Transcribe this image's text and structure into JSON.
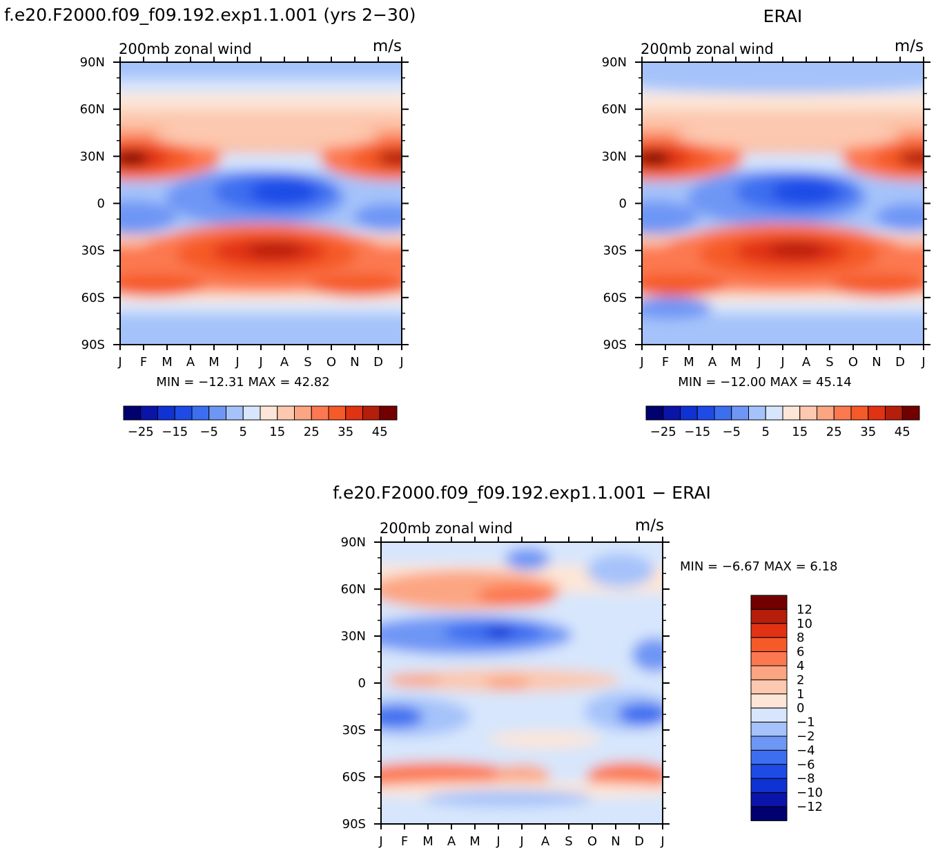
{
  "chart_data": [
    {
      "type": "heatmap",
      "title": "f.e20.F2000.f09_f09.192.exp1.1.001 (yrs 2−30)",
      "subtitle": "200mb  zonal  wind",
      "units": "m/s",
      "x_tick_labels": [
        "J",
        "F",
        "M",
        "A",
        "M",
        "J",
        "J",
        "A",
        "S",
        "O",
        "N",
        "D",
        "J"
      ],
      "y_tick_labels": [
        "90N",
        "60N",
        "30N",
        "0",
        "30S",
        "60S",
        "90S"
      ],
      "stats": "MIN =  −12.31  MAX =    42.82",
      "colorbar_labels": [
        "−25",
        "−15",
        "−5",
        "5",
        "15",
        "25",
        "35",
        "45"
      ],
      "colorbar_levels": [
        -30,
        -25,
        -20,
        -15,
        -10,
        -5,
        0,
        5,
        10,
        15,
        20,
        25,
        30,
        35,
        40,
        45,
        50
      ],
      "xlim": [
        1,
        13
      ],
      "ylim": [
        -90,
        90
      ]
    },
    {
      "type": "heatmap",
      "title": "ERAI",
      "subtitle": "200mb  zonal  wind",
      "units": "m/s",
      "x_tick_labels": [
        "J",
        "F",
        "M",
        "A",
        "M",
        "J",
        "J",
        "A",
        "S",
        "O",
        "N",
        "D",
        "J"
      ],
      "y_tick_labels": [
        "90N",
        "60N",
        "30N",
        "0",
        "30S",
        "60S",
        "90S"
      ],
      "stats": "MIN =  −12.00  MAX =    45.14",
      "colorbar_labels": [
        "−25",
        "−15",
        "−5",
        "5",
        "15",
        "25",
        "35",
        "45"
      ],
      "colorbar_levels": [
        -30,
        -25,
        -20,
        -15,
        -10,
        -5,
        0,
        5,
        10,
        15,
        20,
        25,
        30,
        35,
        40,
        45,
        50
      ],
      "xlim": [
        1,
        13
      ],
      "ylim": [
        -90,
        90
      ]
    },
    {
      "type": "heatmap",
      "title": "f.e20.F2000.f09_f09.192.exp1.1.001  −  ERAI",
      "subtitle": "200mb  zonal  wind",
      "units": "m/s",
      "x_tick_labels": [
        "J",
        "F",
        "M",
        "A",
        "M",
        "J",
        "J",
        "A",
        "S",
        "O",
        "N",
        "D",
        "J"
      ],
      "y_tick_labels": [
        "90N",
        "60N",
        "30N",
        "0",
        "30S",
        "60S",
        "90S"
      ],
      "stats": "MIN =    −6.67  MAX =     6.18",
      "colorbar_labels": [
        "12",
        "10",
        "8",
        "6",
        "4",
        "2",
        "1",
        "0",
        "−1",
        "−2",
        "−4",
        "−6",
        "−8",
        "−10",
        "−12"
      ],
      "xlim": [
        1,
        13
      ],
      "ylim": [
        -90,
        90
      ]
    }
  ],
  "palettes": {
    "full": [
      "#00006e",
      "#0a14a8",
      "#0f32d2",
      "#1e4be6",
      "#3c6ef0",
      "#6e96f5",
      "#a5c3fa",
      "#d7e6fc",
      "#fde6d7",
      "#fcc8af",
      "#fca582",
      "#fc7850",
      "#f55a28",
      "#e13214",
      "#b41e0a",
      "#730000"
    ],
    "diff": [
      "#730000",
      "#b41e0a",
      "#e13214",
      "#f55a28",
      "#fc7850",
      "#fca582",
      "#fcc8af",
      "#fde6d7",
      "#d7e6fc",
      "#a5c3fa",
      "#6e96f5",
      "#3c6ef0",
      "#1e4be6",
      "#0f32d2",
      "#0a14a8",
      "#00006e"
    ]
  }
}
